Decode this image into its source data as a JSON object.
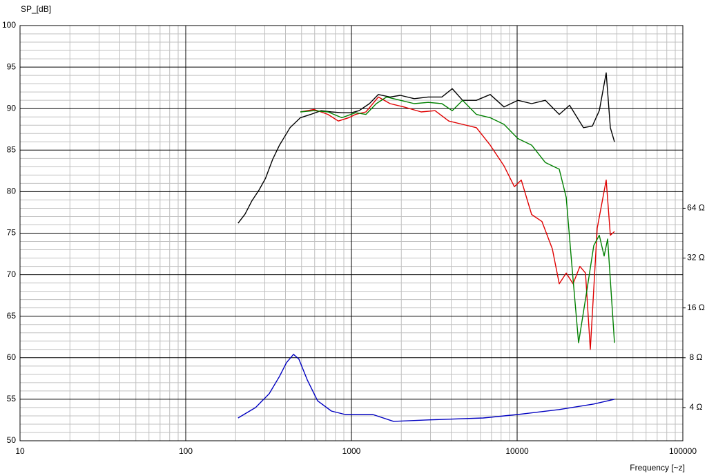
{
  "chart_data": {
    "type": "line",
    "y_label": "SP_[dB]",
    "x_label": "Frequency [~z]",
    "xscale": "log",
    "xlim": [
      10,
      100000
    ],
    "xticks": [
      10,
      100,
      1000,
      10000,
      100000
    ],
    "ylim": [
      50,
      100
    ],
    "yticks": [
      50,
      55,
      60,
      65,
      70,
      75,
      80,
      85,
      90,
      95,
      100
    ],
    "y2scale": "log",
    "y2lim": [
      2.52,
      812.7
    ],
    "y2ticks": [
      {
        "value": 4,
        "label": "4 Ω"
      },
      {
        "value": 8,
        "label": "8 Ω"
      },
      {
        "value": 16,
        "label": "16 Ω"
      },
      {
        "value": 32,
        "label": "32 Ω"
      },
      {
        "value": 64,
        "label": "64 Ω"
      }
    ],
    "grid": true,
    "minor_grid": true,
    "series": [
      {
        "color": "#000000",
        "x": [
          207,
          228,
          251,
          277,
          303,
          335,
          368,
          426,
          492,
          568,
          656,
          757,
          875,
          1000,
          1111,
          1284,
          1454,
          1711,
          1975,
          2395,
          2905,
          3514,
          4058,
          4688,
          5675,
          6879,
          8337,
          10100,
          12230,
          14800,
          17960,
          20740,
          25120,
          28460,
          31320,
          34470,
          36510,
          38680
        ],
        "values": [
          76.2,
          77.3,
          78.9,
          80.2,
          81.6,
          83.9,
          85.6,
          87.7,
          88.9,
          89.3,
          89.75,
          89.6,
          89.5,
          89.5,
          89.75,
          90.6,
          91.7,
          91.4,
          91.6,
          91.2,
          91.4,
          91.4,
          92.4,
          91.0,
          91.0,
          91.7,
          90.2,
          91.0,
          90.6,
          91.0,
          89.3,
          90.4,
          87.7,
          87.9,
          89.75,
          94.3,
          87.7,
          86.0
        ]
      },
      {
        "color": "#e00000",
        "x": [
          492,
          594,
          722,
          833,
          962,
          1059,
          1223,
          1454,
          1711,
          2074,
          2636,
          3195,
          3868,
          4688,
          5675,
          6879,
          8337,
          9623,
          10590,
          12230,
          14130,
          16310,
          17960,
          19780,
          21750,
          23930,
          25850,
          27650,
          30430,
          34470,
          36510,
          38680
        ],
        "values": [
          89.6,
          89.9,
          89.3,
          88.5,
          88.9,
          89.3,
          89.6,
          91.4,
          90.6,
          90.2,
          89.6,
          89.75,
          88.5,
          88.1,
          87.7,
          85.6,
          83.1,
          80.6,
          81.4,
          77.25,
          76.4,
          73.1,
          68.9,
          70.2,
          68.9,
          71.0,
          70.2,
          61.0,
          75.6,
          81.4,
          74.75,
          75.2
        ]
      },
      {
        "color": "#008000",
        "x": [
          492,
          594,
          722,
          875,
          1059,
          1223,
          1413,
          1631,
          1975,
          2395,
          2905,
          3514,
          4058,
          4688,
          5675,
          6879,
          8337,
          10100,
          12230,
          14800,
          17960,
          19780,
          21340,
          23490,
          26350,
          29010,
          31320,
          33500,
          35160,
          38680
        ],
        "values": [
          89.6,
          89.75,
          89.6,
          88.9,
          89.5,
          89.3,
          90.6,
          91.4,
          91.0,
          90.6,
          90.75,
          90.6,
          89.75,
          91.0,
          89.3,
          88.9,
          88.1,
          86.4,
          85.6,
          83.5,
          82.7,
          79.3,
          71.4,
          61.8,
          68.1,
          73.5,
          74.75,
          72.25,
          74.3,
          61.8
        ]
      },
      {
        "color": "#0000c0",
        "axis": "y2",
        "x": [
          207,
          264,
          319,
          368,
          406,
          447,
          482,
          541,
          625,
          757,
          917,
          1346,
          1795,
          2905,
          6252,
          10100,
          17960,
          29010,
          38680
        ],
        "values": [
          3.46,
          4.0,
          4.85,
          6.17,
          7.48,
          8.39,
          7.85,
          5.88,
          4.39,
          3.81,
          3.63,
          3.63,
          3.3,
          3.37,
          3.46,
          3.63,
          3.89,
          4.2,
          4.49
        ]
      }
    ]
  }
}
